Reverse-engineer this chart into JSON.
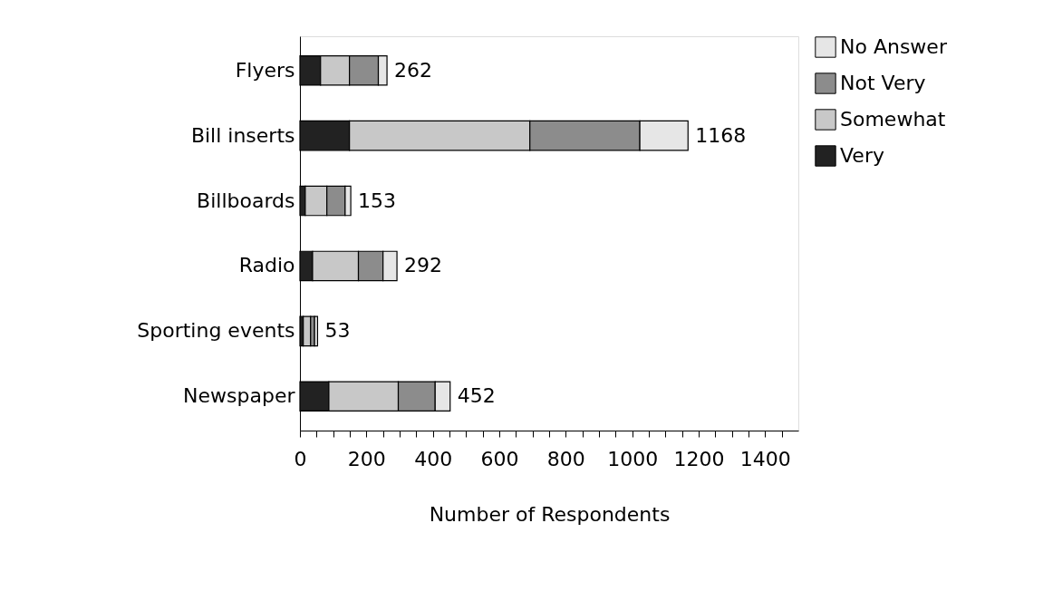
{
  "chart_data": {
    "type": "bar",
    "orientation": "horizontal",
    "stacked": true,
    "categories": [
      "Flyers",
      "Bill inserts",
      "Billboards",
      "Radio",
      "Sporting events",
      "Newspaper"
    ],
    "series": [
      {
        "name": "Very",
        "color": "#222222",
        "values": [
          62,
          149,
          16,
          38,
          10,
          87
        ]
      },
      {
        "name": "Somewhat",
        "color": "#c8c8c8",
        "values": [
          87,
          543,
          65,
          138,
          22,
          209
        ]
      },
      {
        "name": "Not Very",
        "color": "#8c8c8c",
        "values": [
          87,
          331,
          55,
          74,
          12,
          111
        ]
      },
      {
        "name": "No Answer",
        "color": "#e6e6e6",
        "values": [
          26,
          145,
          17,
          42,
          9,
          45
        ]
      }
    ],
    "totals": [
      "262",
      "1168",
      "153",
      "292",
      "53",
      "452"
    ],
    "xlabel": "Number of Respondents",
    "xlim": [
      0,
      1500
    ],
    "xticks": [
      0,
      {
        "value": 50,
        "label": null
      },
      {
        "value": 100,
        "label": null
      },
      {
        "value": 150,
        "label": null
      },
      200,
      {
        "value": 250,
        "label": null
      },
      {
        "value": 300,
        "label": null
      },
      {
        "value": 350,
        "label": null
      },
      400,
      {
        "value": 450,
        "label": null
      },
      {
        "value": 500,
        "label": null
      },
      {
        "value": 550,
        "label": null
      },
      600,
      {
        "value": 650,
        "label": null
      },
      {
        "value": 700,
        "label": null
      },
      {
        "value": 750,
        "label": null
      },
      800,
      {
        "value": 850,
        "label": null
      },
      {
        "value": 900,
        "label": null
      },
      {
        "value": 950,
        "label": null
      },
      1000,
      {
        "value": 1050,
        "label": null
      },
      {
        "value": 1100,
        "label": null
      },
      {
        "value": 1150,
        "label": null
      },
      1200,
      {
        "value": 1250,
        "label": null
      },
      {
        "value": 1300,
        "label": null
      },
      {
        "value": 1350,
        "label": null
      },
      1400,
      {
        "value": 1450,
        "label": null
      }
    ],
    "grid": false,
    "legend": "right"
  }
}
